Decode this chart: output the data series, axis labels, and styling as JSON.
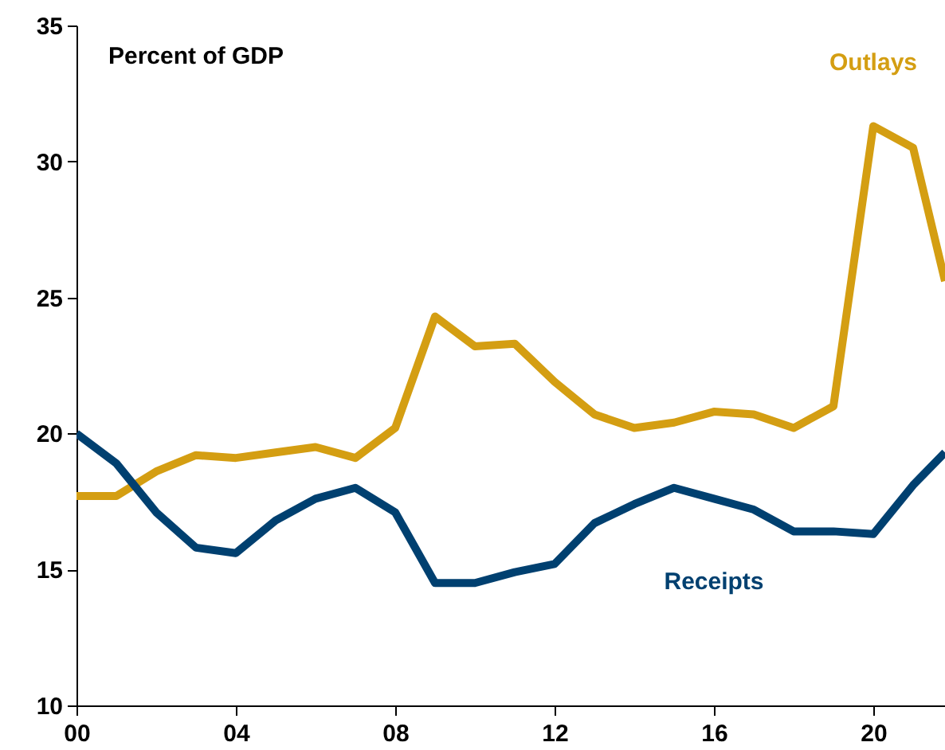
{
  "chart_data": {
    "type": "line",
    "annotations": [
      "Percent of GDP"
    ],
    "xlim": [
      0,
      21.8
    ],
    "xticks": [
      {
        "value": 0,
        "label": "00"
      },
      {
        "value": 4,
        "label": "04"
      },
      {
        "value": 8,
        "label": "08"
      },
      {
        "value": 12,
        "label": "12"
      },
      {
        "value": 16,
        "label": "16"
      },
      {
        "value": 20,
        "label": "20"
      }
    ],
    "ylim": [
      10,
      35
    ],
    "yticks": [
      10,
      15,
      20,
      25,
      30,
      35
    ],
    "grid": false,
    "line_style": "solid",
    "marker": "none",
    "x": [
      0,
      1,
      2,
      3,
      4,
      5,
      6,
      7,
      8,
      9,
      10,
      11,
      12,
      13,
      14,
      15,
      16,
      17,
      18,
      19,
      20,
      21,
      21.8
    ],
    "series": [
      {
        "name": "Outlays",
        "color": "#d49e12",
        "values": [
          17.7,
          17.7,
          18.6,
          19.2,
          19.1,
          19.3,
          19.5,
          19.1,
          20.2,
          24.3,
          23.2,
          23.3,
          21.9,
          20.7,
          20.2,
          20.4,
          20.8,
          20.7,
          20.2,
          21.0,
          31.3,
          30.5,
          25.6
        ]
      },
      {
        "name": "Receipts",
        "color": "#004070",
        "values": [
          20.0,
          18.9,
          17.1,
          15.8,
          15.6,
          16.8,
          17.6,
          18.0,
          17.1,
          14.5,
          14.5,
          14.9,
          15.2,
          16.7,
          17.4,
          18.0,
          17.6,
          17.2,
          16.4,
          16.4,
          16.3,
          18.1,
          19.3
        ]
      }
    ]
  }
}
